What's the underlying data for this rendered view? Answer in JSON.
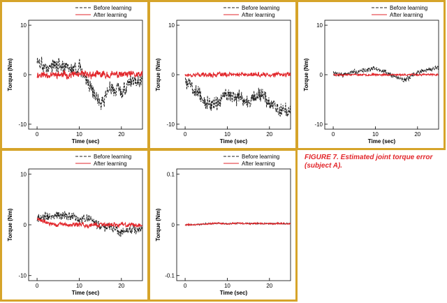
{
  "caption": "FIGURE 7. Estimated joint torque error (subject A).",
  "colors": {
    "border": "#d6a42a",
    "before": "#222222",
    "after": "#e2262b",
    "caption": "#e2262b"
  },
  "chart_data": [
    {
      "type": "line",
      "xlabel": "Time (sec)",
      "ylabel": "Torque (Nm)",
      "xlim": [
        -2,
        25
      ],
      "ylim": [
        -11,
        11
      ],
      "xticks": [
        0,
        10,
        20
      ],
      "yticks": [
        -10,
        0,
        10
      ],
      "legend": "top-right",
      "series": [
        {
          "name": "Before learning",
          "style": "dashed",
          "amplitude": 2.0,
          "offset": -1.2,
          "seed": 3,
          "x": [
            0,
            2.5,
            5,
            7.5,
            10,
            12.5,
            15,
            17.5,
            20,
            22.5,
            25
          ],
          "y": [
            2.5,
            1.5,
            2.0,
            1.0,
            1.5,
            -2.0,
            -6.0,
            -2.5,
            -3.5,
            -1.0,
            -0.5
          ]
        },
        {
          "name": "After learning",
          "style": "solid",
          "amplitude": 1.0,
          "offset": 0,
          "seed": 11,
          "x": [
            0,
            2.5,
            5,
            7.5,
            10,
            12.5,
            15,
            17.5,
            20,
            22.5,
            25
          ],
          "y": [
            0,
            0,
            0,
            0,
            0,
            0,
            0,
            0,
            0,
            0,
            0
          ]
        }
      ]
    },
    {
      "type": "line",
      "xlabel": "Time (sec)",
      "ylabel": "Torque (Nm)",
      "xlim": [
        -2,
        25
      ],
      "ylim": [
        -11,
        11
      ],
      "xticks": [
        0,
        10,
        20
      ],
      "yticks": [
        -10,
        0,
        10
      ],
      "legend": "top-right",
      "series": [
        {
          "name": "Before learning",
          "style": "dashed",
          "amplitude": 2.2,
          "offset": -1.5,
          "seed": 5,
          "x": [
            0,
            2.5,
            5,
            7.5,
            10,
            12.5,
            15,
            17.5,
            20,
            22.5,
            25
          ],
          "y": [
            -1.0,
            -3.0,
            -5.5,
            -6.0,
            -3.5,
            -5.0,
            -5.5,
            -4.0,
            -6.0,
            -7.0,
            -7.5
          ]
        },
        {
          "name": "After learning",
          "style": "solid",
          "amplitude": 0.6,
          "offset": 0,
          "seed": 17,
          "x": [
            0,
            2.5,
            5,
            7.5,
            10,
            12.5,
            15,
            17.5,
            20,
            22.5,
            25
          ],
          "y": [
            0,
            0,
            0,
            0,
            0,
            0,
            0,
            0,
            0,
            0,
            0
          ]
        }
      ]
    },
    {
      "type": "line",
      "xlabel": "Time (sec)",
      "ylabel": "Torque (Nm)",
      "xlim": [
        -2,
        25
      ],
      "ylim": [
        -11,
        11
      ],
      "xticks": [
        0,
        10,
        20
      ],
      "yticks": [
        -10,
        0,
        10
      ],
      "legend": "top-right",
      "series": [
        {
          "name": "Before learning",
          "style": "dashed",
          "amplitude": 0.7,
          "offset": 0,
          "seed": 7,
          "x": [
            0,
            2.5,
            5,
            7.5,
            10,
            12.5,
            15,
            17.5,
            20,
            22.5,
            25
          ],
          "y": [
            0.3,
            0.0,
            0.5,
            1.0,
            1.2,
            0.5,
            -0.5,
            -1.0,
            0.5,
            1.0,
            1.5
          ]
        },
        {
          "name": "After learning",
          "style": "solid",
          "amplitude": 0.25,
          "offset": 0,
          "seed": 23,
          "x": [
            0,
            2.5,
            5,
            7.5,
            10,
            12.5,
            15,
            17.5,
            20,
            22.5,
            25
          ],
          "y": [
            0,
            0,
            0,
            0,
            0,
            0,
            0,
            0,
            0,
            0,
            0
          ]
        }
      ]
    },
    {
      "type": "line",
      "xlabel": "Time (sec)",
      "ylabel": "Torque (Nm)",
      "xlim": [
        -2,
        25
      ],
      "ylim": [
        -11,
        11
      ],
      "xticks": [
        0,
        10,
        20
      ],
      "yticks": [
        -10,
        0,
        10
      ],
      "legend": "top-right",
      "series": [
        {
          "name": "Before learning",
          "style": "dashed",
          "amplitude": 1.3,
          "offset": 0,
          "seed": 9,
          "x": [
            0,
            2.5,
            5,
            7.5,
            10,
            12.5,
            15,
            17.5,
            20,
            22.5,
            25
          ],
          "y": [
            1.5,
            1.5,
            2.0,
            2.0,
            1.0,
            1.5,
            -0.5,
            -0.5,
            -1.5,
            -1.0,
            -1.0
          ]
        },
        {
          "name": "After learning",
          "style": "solid",
          "amplitude": 0.6,
          "offset": 0,
          "seed": 29,
          "x": [
            0,
            2.5,
            5,
            7.5,
            10,
            12.5,
            15,
            17.5,
            20,
            22.5,
            25
          ],
          "y": [
            1.2,
            0.3,
            0,
            0,
            0,
            0,
            0,
            0,
            0,
            0,
            0
          ]
        }
      ]
    },
    {
      "type": "line",
      "xlabel": "Time (sec)",
      "ylabel": "Torque (Nm)",
      "xlim": [
        -2,
        25
      ],
      "ylim": [
        -0.11,
        0.11
      ],
      "xticks": [
        0,
        10,
        20
      ],
      "yticks": [
        -0.1,
        0,
        0.1
      ],
      "legend": "top-right",
      "series": [
        {
          "name": "Before learning",
          "style": "dashed",
          "amplitude": 0.002,
          "offset": 0,
          "seed": 13,
          "x": [
            0,
            2.5,
            5,
            7.5,
            10,
            12.5,
            15,
            17.5,
            20,
            22.5,
            25
          ],
          "y": [
            0,
            0,
            0.002,
            0.003,
            0.002,
            0.003,
            0.002,
            0.003,
            0.002,
            0.003,
            0.002
          ]
        },
        {
          "name": "After learning",
          "style": "solid",
          "amplitude": 0.002,
          "offset": 0,
          "seed": 31,
          "x": [
            0,
            2.5,
            5,
            7.5,
            10,
            12.5,
            15,
            17.5,
            20,
            22.5,
            25
          ],
          "y": [
            0,
            0,
            0.002,
            0.003,
            0.002,
            0.003,
            0.002,
            0.003,
            0.002,
            0.003,
            0.002
          ]
        }
      ]
    }
  ]
}
